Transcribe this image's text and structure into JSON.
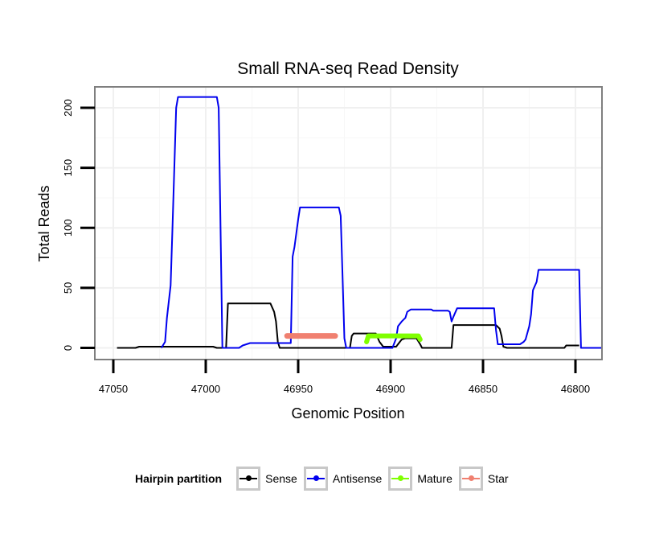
{
  "chart_data": {
    "type": "line",
    "title": "Small RNA-seq Read Density",
    "xlabel": "Genomic Position",
    "ylabel": "Total Reads",
    "xlim": [
      47050,
      46800
    ],
    "ylim": [
      -10,
      217
    ],
    "x_ticks": [
      47050,
      47000,
      46950,
      46900,
      46850,
      46800
    ],
    "x_tick_labels": [
      "47050",
      "47000",
      "46950",
      "46900",
      "46850",
      "46800"
    ],
    "y_ticks": [
      0,
      50,
      100,
      150,
      200
    ],
    "y_tick_labels": [
      "0",
      "50",
      "100",
      "150",
      "200"
    ],
    "grid": true,
    "legend_position": "bottom",
    "series": [
      {
        "name": "Sense",
        "color": "#000000",
        "width": 2,
        "points": [
          [
            47048,
            0
          ],
          [
            47038,
            0
          ],
          [
            47036,
            1
          ],
          [
            47016,
            1
          ],
          [
            47014,
            1
          ],
          [
            46996,
            1
          ],
          [
            46994,
            0
          ],
          [
            46989,
            0
          ],
          [
            46988,
            37
          ],
          [
            46965,
            37
          ],
          [
            46963,
            30
          ],
          [
            46962,
            22
          ],
          [
            46961,
            5
          ],
          [
            46960,
            0
          ],
          [
            46922,
            0
          ],
          [
            46921,
            10
          ],
          [
            46920,
            12
          ],
          [
            46908,
            12
          ],
          [
            46906,
            5
          ],
          [
            46904,
            1
          ],
          [
            46897,
            1
          ],
          [
            46895,
            5
          ],
          [
            46894,
            7
          ],
          [
            46892,
            8
          ],
          [
            46886,
            8
          ],
          [
            46884,
            3
          ],
          [
            46883,
            0
          ],
          [
            46867,
            0
          ],
          [
            46866,
            19
          ],
          [
            46843,
            19
          ],
          [
            46841,
            16
          ],
          [
            46840,
            10
          ],
          [
            46839,
            1
          ],
          [
            46837,
            0
          ],
          [
            46806,
            0
          ],
          [
            46805,
            2
          ],
          [
            46798,
            2
          ]
        ]
      },
      {
        "name": "Antisense",
        "color": "#0000ee",
        "width": 2,
        "points": [
          [
            47024,
            0
          ],
          [
            47022,
            5
          ],
          [
            47021,
            25
          ],
          [
            47019,
            52
          ],
          [
            47018,
            100
          ],
          [
            47016,
            200
          ],
          [
            47015,
            209
          ],
          [
            46994,
            209
          ],
          [
            46993,
            200
          ],
          [
            46992,
            100
          ],
          [
            46991,
            0
          ],
          [
            46982,
            0
          ],
          [
            46980,
            2
          ],
          [
            46978,
            3
          ],
          [
            46976,
            4
          ],
          [
            46954,
            4
          ],
          [
            46953,
            76
          ],
          [
            46952,
            84
          ],
          [
            46950,
            107
          ],
          [
            46949,
            117
          ],
          [
            46928,
            117
          ],
          [
            46927,
            110
          ],
          [
            46926,
            60
          ],
          [
            46925,
            8
          ],
          [
            46924,
            0
          ],
          [
            46899,
            0
          ],
          [
            46897,
            8
          ],
          [
            46896,
            18
          ],
          [
            46894,
            22
          ],
          [
            46892,
            25
          ],
          [
            46891,
            30
          ],
          [
            46889,
            32
          ],
          [
            46878,
            32
          ],
          [
            46877,
            31
          ],
          [
            46869,
            31
          ],
          [
            46868,
            30
          ],
          [
            46867,
            22
          ],
          [
            46866,
            26
          ],
          [
            46864,
            33
          ],
          [
            46844,
            33
          ],
          [
            46843,
            15
          ],
          [
            46842,
            3
          ],
          [
            46830,
            3
          ],
          [
            46828,
            5
          ],
          [
            46827,
            7
          ],
          [
            46825,
            18
          ],
          [
            46824,
            28
          ],
          [
            46823,
            48
          ],
          [
            46821,
            55
          ],
          [
            46820,
            65
          ],
          [
            46798,
            65
          ],
          [
            46797,
            0
          ],
          [
            46786,
            0
          ]
        ]
      },
      {
        "name": "Mature",
        "color": "#7fff00",
        "width": 6,
        "points": [
          [
            46913,
            5
          ],
          [
            46912,
            10
          ],
          [
            46885,
            10
          ],
          [
            46884,
            7
          ]
        ]
      },
      {
        "name": "Star",
        "color": "#f08070",
        "width": 7,
        "points": [
          [
            46956,
            10
          ],
          [
            46930,
            10
          ]
        ]
      }
    ]
  },
  "legend": {
    "title": "Hairpin partition",
    "items": [
      {
        "label": "Sense",
        "color": "#000000"
      },
      {
        "label": "Antisense",
        "color": "#0000ee"
      },
      {
        "label": "Mature",
        "color": "#7fff00"
      },
      {
        "label": "Star",
        "color": "#f08070"
      }
    ]
  }
}
